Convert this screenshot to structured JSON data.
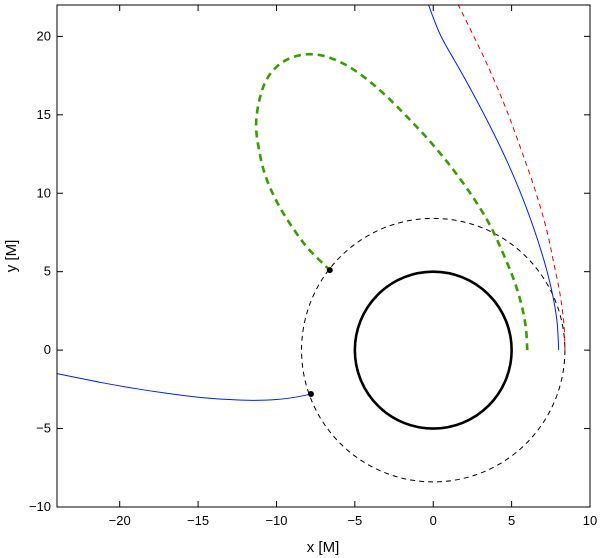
{
  "chart_data": {
    "type": "line",
    "title": "",
    "xlabel": "x [M]",
    "ylabel": "y [M]",
    "xlim": [
      -24,
      10
    ],
    "ylim": [
      -10,
      22
    ],
    "grid": false,
    "legend": "none",
    "x_ticks": [
      -20,
      -15,
      -10,
      -5,
      0,
      5,
      10
    ],
    "y_ticks": [
      -10,
      -5,
      0,
      5,
      10,
      15,
      20
    ],
    "x_tick_labels": [
      "−20",
      "−15",
      "−10",
      "−5",
      "0",
      "5",
      "10"
    ],
    "y_tick_labels": [
      "−10",
      "−5",
      "0",
      "5",
      "10",
      "15",
      "20"
    ],
    "circles": [
      {
        "cx": 0,
        "cy": 0,
        "r": 5,
        "color": "#000000",
        "style": "solid",
        "weight": "thick"
      },
      {
        "cx": 0,
        "cy": 0,
        "r": 8.4,
        "color": "#000000",
        "style": "dashed",
        "weight": "thin"
      }
    ],
    "series": [
      {
        "color": "#3a9a00",
        "style": "dashed",
        "weight": "thick",
        "points": [
          [
            6.0,
            0.0
          ],
          [
            5.9,
            1.5
          ],
          [
            5.6,
            3.0
          ],
          [
            5.1,
            4.6
          ],
          [
            4.4,
            6.3
          ],
          [
            3.6,
            8.0
          ],
          [
            2.5,
            9.8
          ],
          [
            1.2,
            11.6
          ],
          [
            -0.2,
            13.3
          ],
          [
            -1.6,
            14.8
          ],
          [
            -3.0,
            16.2
          ],
          [
            -4.4,
            17.4
          ],
          [
            -5.8,
            18.3
          ],
          [
            -7.2,
            18.8
          ],
          [
            -8.5,
            18.8
          ],
          [
            -9.7,
            18.3
          ],
          [
            -10.6,
            17.3
          ],
          [
            -11.1,
            15.9
          ],
          [
            -11.3,
            14.3
          ],
          [
            -11.1,
            12.7
          ],
          [
            -10.7,
            11.1
          ],
          [
            -10.0,
            9.5
          ],
          [
            -9.1,
            8.0
          ],
          [
            -8.0,
            6.5
          ],
          [
            -6.6,
            5.1
          ]
        ]
      },
      {
        "color": "#e00000",
        "style": "dashed",
        "weight": "thin",
        "points": [
          [
            8.4,
            0.0
          ],
          [
            8.35,
            1.5
          ],
          [
            8.1,
            3.5
          ],
          [
            7.7,
            5.5
          ],
          [
            7.2,
            7.8
          ],
          [
            6.5,
            10.2
          ],
          [
            5.6,
            12.8
          ],
          [
            4.6,
            15.5
          ],
          [
            3.4,
            18.3
          ],
          [
            2.0,
            21.2
          ],
          [
            1.6,
            22.0
          ]
        ]
      },
      {
        "color": "#0020e0",
        "style": "solid",
        "weight": "thin",
        "points": [
          [
            8.0,
            0.0
          ],
          [
            7.9,
            1.8
          ],
          [
            7.6,
            3.6
          ],
          [
            7.1,
            5.6
          ],
          [
            6.4,
            7.8
          ],
          [
            5.5,
            10.2
          ],
          [
            4.4,
            12.7
          ],
          [
            3.1,
            15.3
          ],
          [
            1.8,
            17.7
          ],
          [
            0.5,
            20.0
          ],
          [
            -0.3,
            22.0
          ]
        ]
      },
      {
        "color": "#0020e0",
        "style": "solid",
        "weight": "thin",
        "points": [
          [
            -7.8,
            -2.8
          ],
          [
            -8.8,
            -3.0
          ],
          [
            -10.0,
            -3.15
          ],
          [
            -11.5,
            -3.2
          ],
          [
            -13.0,
            -3.15
          ],
          [
            -15.0,
            -3.0
          ],
          [
            -17.0,
            -2.75
          ],
          [
            -19.0,
            -2.45
          ],
          [
            -21.0,
            -2.1
          ],
          [
            -22.5,
            -1.8
          ],
          [
            -24.0,
            -1.5
          ]
        ]
      }
    ],
    "markers": [
      {
        "x": -6.6,
        "y": 5.1,
        "color": "#000000"
      },
      {
        "x": -7.8,
        "y": -2.8,
        "color": "#000000"
      }
    ]
  }
}
